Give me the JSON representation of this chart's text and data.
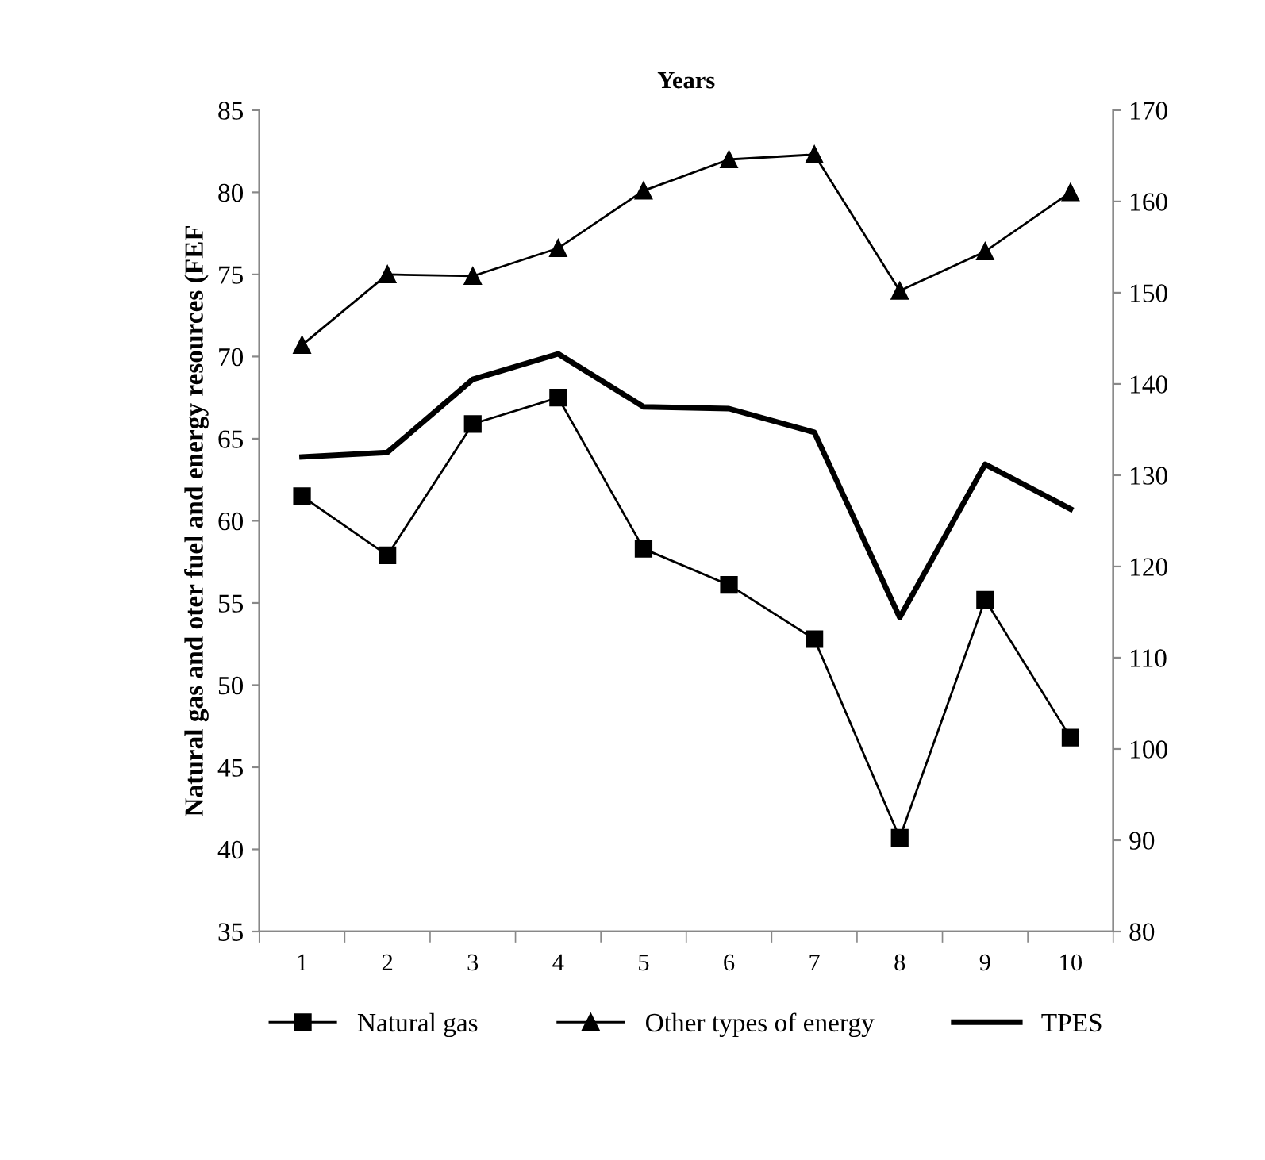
{
  "chart_data": {
    "type": "line",
    "title": "Years",
    "ylabel": "Natural gas and oter fuel and energy resources (FEF",
    "categories": [
      "1",
      "2",
      "3",
      "4",
      "5",
      "6",
      "7",
      "8",
      "9",
      "10"
    ],
    "series": [
      {
        "name": "Natural gas",
        "color": "#000000",
        "marker": "square",
        "values": [
          61.5,
          57.9,
          65.9,
          67.5,
          58.3,
          56.1,
          52.8,
          40.7,
          55.2,
          46.8
        ]
      },
      {
        "name": "Other types of energy",
        "color": "#000000",
        "marker": "triangle",
        "values": [
          70.7,
          75.0,
          74.9,
          76.6,
          80.1,
          82.0,
          82.3,
          74.0,
          76.4,
          80.0
        ]
      },
      {
        "name": "TPES",
        "color": "#000000",
        "marker": "none",
        "axis": "y2",
        "values": [
          132.0,
          132.5,
          140.5,
          143.3,
          137.5,
          137.3,
          134.7,
          114.4,
          131.2,
          126.3
        ]
      }
    ],
    "ylim": [
      35,
      85
    ],
    "yticks": [
      35,
      40,
      45,
      50,
      55,
      60,
      65,
      70,
      75,
      80,
      85
    ],
    "y2lim": [
      80,
      170
    ],
    "y2ticks": [
      80,
      90,
      100,
      110,
      120,
      130,
      140,
      150,
      160,
      170
    ],
    "grid": false,
    "legend": "bottom"
  }
}
